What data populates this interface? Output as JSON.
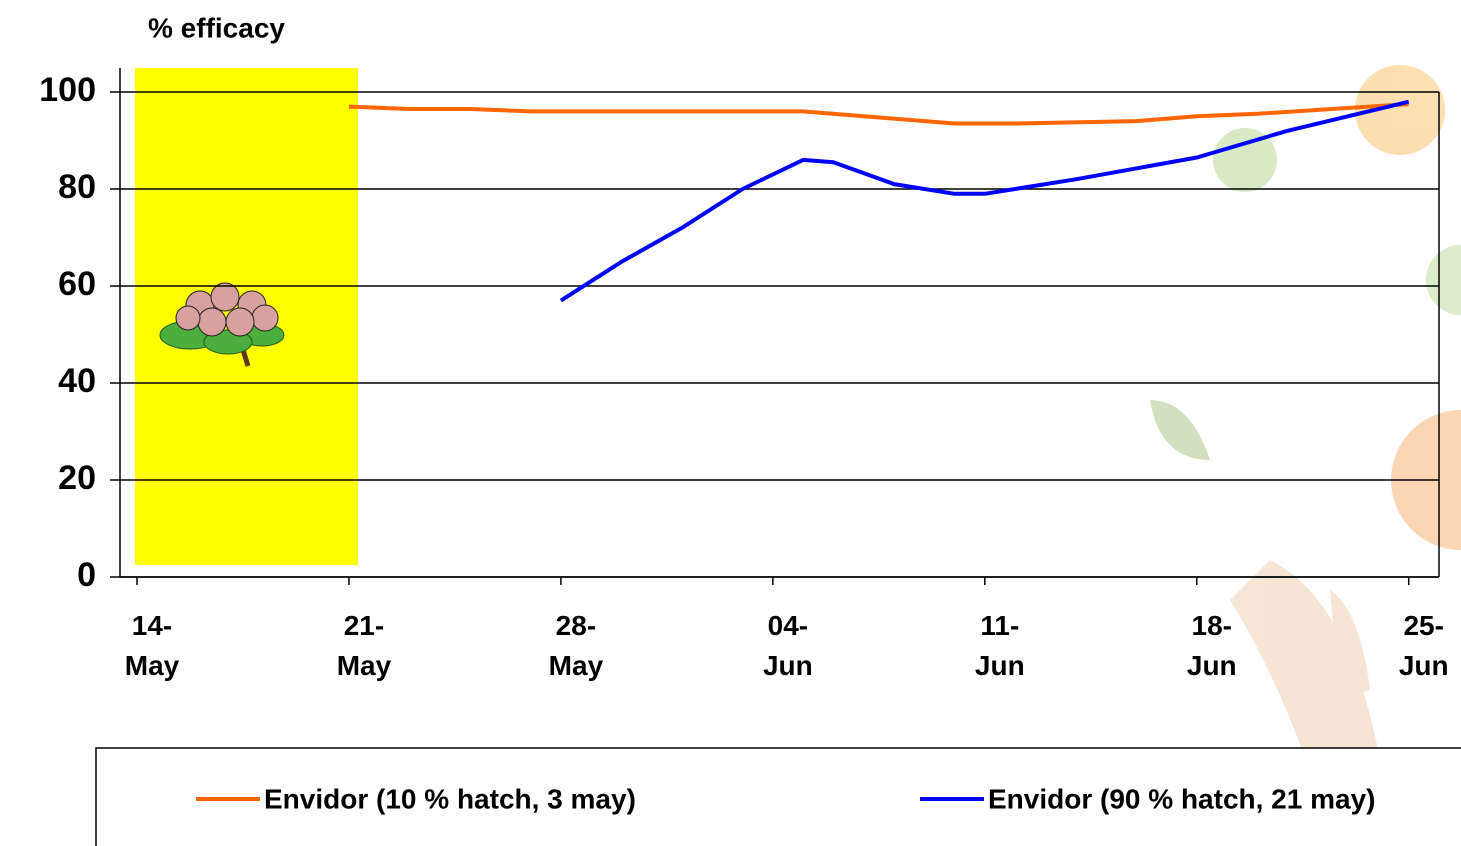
{
  "chart_data": {
    "type": "line",
    "ylabel": "% efficacy",
    "xticks": [
      "14-May",
      "21-May",
      "28-May",
      "04-Jun",
      "11-Jun",
      "18-Jun",
      "25-Jun"
    ],
    "xlim": [
      "14-May",
      "26-Jun"
    ],
    "ylim": [
      0,
      100
    ],
    "yticks": [
      0,
      20,
      40,
      60,
      80,
      100
    ],
    "grid": true,
    "legend": "bottom",
    "series": [
      {
        "name": "Envidor (10 % hatch, 3 may)",
        "color": "#ff6600",
        "x": [
          "21-May",
          "23-May",
          "25-May",
          "27-May",
          "05-Jun",
          "07-Jun",
          "10-Jun",
          "12-Jun",
          "16-Jun",
          "18-Jun",
          "20-Jun",
          "25-Jun"
        ],
        "values": [
          97,
          96.5,
          96.5,
          96,
          96,
          95,
          93.5,
          93.5,
          94,
          95,
          95.5,
          97.5
        ]
      },
      {
        "name": "Envidor (90 % hatch, 21 may)",
        "color": "#0000ff",
        "x": [
          "28-May",
          "30-May",
          "01-Jun",
          "03-Jun",
          "05-Jun",
          "06-Jun",
          "08-Jun",
          "10-Jun",
          "11-Jun",
          "14-Jun",
          "18-Jun",
          "21-Jun",
          "25-Jun"
        ],
        "values": [
          57,
          65,
          72,
          80,
          86,
          85.5,
          81,
          79,
          79,
          82,
          86.5,
          92,
          98
        ]
      }
    ]
  }
}
